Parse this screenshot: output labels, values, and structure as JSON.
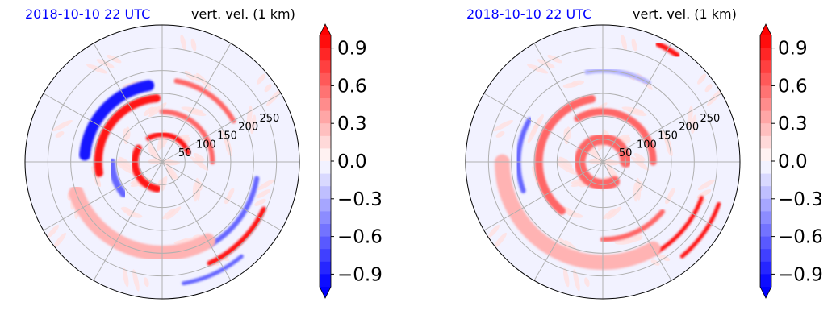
{
  "colors": {
    "positive_max": "#ff0000",
    "negative_max": "#0000ff",
    "neutral": "#f2f2ff",
    "grid": "#b0b0b0",
    "timestamp": "#0000ff"
  },
  "chart_data": [
    {
      "type": "heatmap",
      "projection": "polar",
      "timestamp": "2018-10-10 22 UTC",
      "variable": "vert. vel. (1 km)",
      "radial_ticks": [
        "50",
        "100",
        "150",
        "200",
        "250"
      ],
      "radial_values": [
        50,
        100,
        150,
        200,
        250
      ],
      "rlim": [
        0,
        300
      ],
      "grid": true,
      "colorbar": {
        "ticks": [
          "0.9",
          "0.6",
          "0.3",
          "0.0",
          "−0.3",
          "−0.6",
          "−0.9"
        ],
        "tick_values": [
          0.9,
          0.6,
          0.3,
          0.0,
          -0.3,
          -0.6,
          -0.9
        ],
        "range": [
          -1.0,
          1.0
        ],
        "colormap": "bwr",
        "extend": "both"
      },
      "features": [
        {
          "shape": "arc",
          "sign": "negative",
          "value": -0.9,
          "ang_start": 100,
          "ang_end": 175,
          "r": 170,
          "width": 22
        },
        {
          "shape": "arc",
          "sign": "positive",
          "value": 0.9,
          "ang_start": 95,
          "ang_end": 190,
          "r": 140,
          "width": 16
        },
        {
          "shape": "arc",
          "sign": "negative",
          "value": -0.6,
          "ang_start": 180,
          "ang_end": 220,
          "r": 110,
          "width": 14
        },
        {
          "shape": "arc",
          "sign": "positive",
          "value": 0.9,
          "ang_start": 150,
          "ang_end": 260,
          "r": 60,
          "width": 14
        },
        {
          "shape": "arc",
          "sign": "positive",
          "value": 0.9,
          "ang_start": 20,
          "ang_end": 120,
          "r": 60,
          "width": 10
        },
        {
          "shape": "arc",
          "sign": "positive",
          "value": 0.6,
          "ang_start": 0,
          "ang_end": 90,
          "r": 110,
          "width": 10
        },
        {
          "shape": "arc",
          "sign": "negative",
          "value": -0.6,
          "ang_start": 300,
          "ang_end": 350,
          "r": 210,
          "width": 10
        },
        {
          "shape": "arc",
          "sign": "positive",
          "value": 0.9,
          "ang_start": 295,
          "ang_end": 335,
          "r": 245,
          "width": 10
        },
        {
          "shape": "arc",
          "sign": "negative",
          "value": -0.6,
          "ang_start": 280,
          "ang_end": 310,
          "r": 270,
          "width": 8
        },
        {
          "shape": "arc",
          "sign": "positive",
          "value": 0.3,
          "ang_start": 200,
          "ang_end": 300,
          "r": 200,
          "width": 30
        },
        {
          "shape": "arc",
          "sign": "positive",
          "value": 0.6,
          "ang_start": 30,
          "ang_end": 80,
          "r": 180,
          "width": 10
        }
      ]
    },
    {
      "type": "heatmap",
      "projection": "polar",
      "timestamp": "2018-10-10 22 UTC",
      "variable": "vert. vel. (1 km)",
      "radial_ticks": [
        "50",
        "100",
        "150",
        "200",
        "250"
      ],
      "radial_values": [
        50,
        100,
        150,
        200,
        250
      ],
      "rlim": [
        0,
        300
      ],
      "grid": true,
      "colorbar": {
        "ticks": [
          "0.9",
          "0.6",
          "0.3",
          "0.0",
          "−0.3",
          "−0.6",
          "−0.9"
        ],
        "tick_values": [
          0.9,
          0.6,
          0.3,
          0.0,
          -0.3,
          -0.6,
          -0.9
        ],
        "range": [
          -1.0,
          1.0
        ],
        "colormap": "bwr",
        "extend": "both"
      },
      "features": [
        {
          "shape": "arc",
          "sign": "positive",
          "value": 0.6,
          "ang_start": 100,
          "ang_end": 230,
          "r": 140,
          "width": 16
        },
        {
          "shape": "arc",
          "sign": "negative",
          "value": -0.6,
          "ang_start": 150,
          "ang_end": 200,
          "r": 185,
          "width": 10
        },
        {
          "shape": "arc",
          "sign": "positive",
          "value": 0.6,
          "ang_start": 0,
          "ang_end": 300,
          "r": 50,
          "width": 22
        },
        {
          "shape": "arc",
          "sign": "positive",
          "value": 0.6,
          "ang_start": 0,
          "ang_end": 120,
          "r": 110,
          "width": 14
        },
        {
          "shape": "arc",
          "sign": "positive",
          "value": 0.9,
          "ang_start": 300,
          "ang_end": 340,
          "r": 230,
          "width": 8
        },
        {
          "shape": "arc",
          "sign": "positive",
          "value": 0.9,
          "ang_start": 310,
          "ang_end": 340,
          "r": 270,
          "width": 8
        },
        {
          "shape": "arc",
          "sign": "positive",
          "value": 0.6,
          "ang_start": 270,
          "ang_end": 320,
          "r": 170,
          "width": 10
        },
        {
          "shape": "arc",
          "sign": "negative",
          "value": -0.3,
          "ang_start": 60,
          "ang_end": 100,
          "r": 200,
          "width": 10
        },
        {
          "shape": "arc",
          "sign": "positive",
          "value": 0.9,
          "ang_start": 55,
          "ang_end": 65,
          "r": 285,
          "width": 10
        },
        {
          "shape": "arc",
          "sign": "positive",
          "value": 0.3,
          "ang_start": 180,
          "ang_end": 300,
          "r": 220,
          "width": 30
        }
      ]
    }
  ]
}
